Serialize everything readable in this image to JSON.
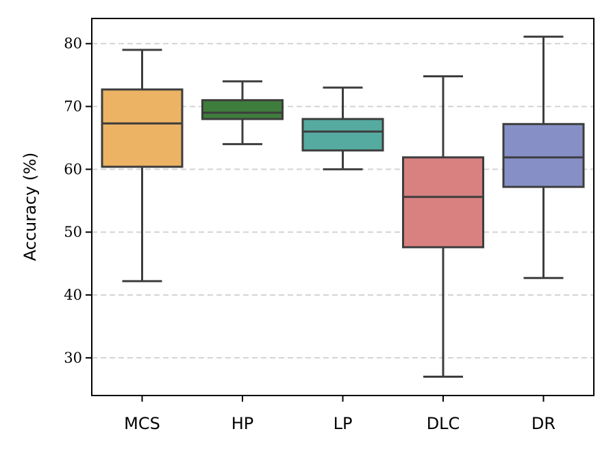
{
  "chart_data": {
    "type": "boxplot",
    "title": "",
    "xlabel": "",
    "ylabel": "Accuracy (%)",
    "ylim": [
      24,
      84
    ],
    "yticks": [
      30,
      40,
      50,
      60,
      70,
      80
    ],
    "grid": "y-dashed",
    "categories": [
      "MCS",
      "HP",
      "LP",
      "DLC",
      "DR"
    ],
    "boxes": [
      {
        "name": "MCS",
        "whisker_low": 42.2,
        "q1": 60.4,
        "median": 67.3,
        "q3": 72.7,
        "whisker_high": 79.0,
        "color": "#EBB363"
      },
      {
        "name": "HP",
        "whisker_low": 64.0,
        "q1": 68.0,
        "median": 69.0,
        "q3": 71.0,
        "whisker_high": 74.0,
        "color": "#3F7D3C"
      },
      {
        "name": "LP",
        "whisker_low": 60.0,
        "q1": 63.0,
        "median": 66.0,
        "q3": 68.0,
        "whisker_high": 73.0,
        "color": "#56ABA0"
      },
      {
        "name": "DLC",
        "whisker_low": 27.0,
        "q1": 47.6,
        "median": 55.6,
        "q3": 61.9,
        "whisker_high": 74.8,
        "color": "#D98080"
      },
      {
        "name": "DR",
        "whisker_low": 42.7,
        "q1": 57.2,
        "median": 61.9,
        "q3": 67.2,
        "whisker_high": 81.1,
        "color": "#8690C6"
      }
    ]
  }
}
